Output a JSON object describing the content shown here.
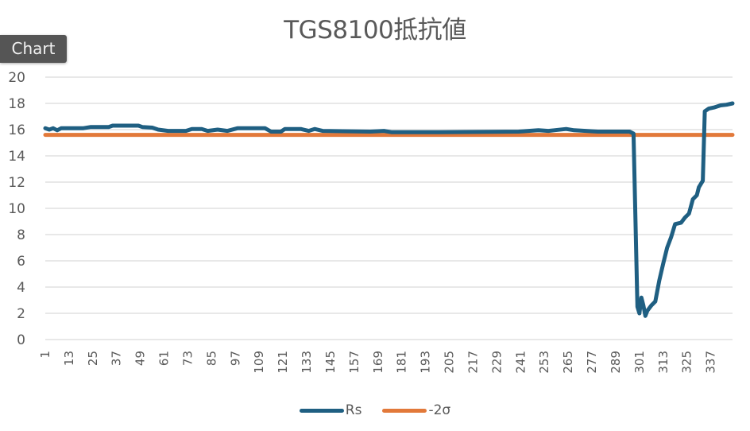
{
  "tag_label": "Chart",
  "colors": {
    "rs": "#1f5f82",
    "sigma": "#e2793a",
    "grid": "#d9d9d9",
    "text": "#595959"
  },
  "chart_data": {
    "type": "line",
    "title": "TGS8100抵抗値",
    "xlabel": "",
    "ylabel": "",
    "ylim": [
      0,
      20
    ],
    "yticks": [
      0,
      2,
      4,
      6,
      8,
      10,
      12,
      14,
      16,
      18,
      20
    ],
    "x_range": [
      1,
      348
    ],
    "xtick_labels": [
      "1",
      "13",
      "25",
      "37",
      "49",
      "61",
      "73",
      "85",
      "97",
      "109",
      "121",
      "133",
      "145",
      "157",
      "169",
      "181",
      "193",
      "205",
      "217",
      "229",
      "241",
      "253",
      "265",
      "277",
      "289",
      "301",
      "313",
      "325",
      "337"
    ],
    "grid": true,
    "legend_position": "bottom",
    "series": [
      {
        "name": "Rs",
        "color": "#1f5f82",
        "points": [
          [
            1,
            16.1
          ],
          [
            3,
            16.0
          ],
          [
            5,
            16.1
          ],
          [
            7,
            15.95
          ],
          [
            9,
            16.1
          ],
          [
            14,
            16.1
          ],
          [
            20,
            16.1
          ],
          [
            24,
            16.2
          ],
          [
            33,
            16.2
          ],
          [
            35,
            16.3
          ],
          [
            48,
            16.3
          ],
          [
            50,
            16.2
          ],
          [
            55,
            16.15
          ],
          [
            58,
            16.0
          ],
          [
            63,
            15.9
          ],
          [
            72,
            15.9
          ],
          [
            75,
            16.05
          ],
          [
            80,
            16.05
          ],
          [
            83,
            15.9
          ],
          [
            88,
            16.0
          ],
          [
            93,
            15.9
          ],
          [
            98,
            16.1
          ],
          [
            112,
            16.1
          ],
          [
            115,
            15.85
          ],
          [
            120,
            15.85
          ],
          [
            122,
            16.05
          ],
          [
            130,
            16.05
          ],
          [
            134,
            15.9
          ],
          [
            137,
            16.05
          ],
          [
            141,
            15.9
          ],
          [
            165,
            15.85
          ],
          [
            172,
            15.9
          ],
          [
            176,
            15.8
          ],
          [
            200,
            15.8
          ],
          [
            240,
            15.85
          ],
          [
            250,
            15.95
          ],
          [
            255,
            15.9
          ],
          [
            258,
            15.95
          ],
          [
            264,
            16.05
          ],
          [
            268,
            15.95
          ],
          [
            274,
            15.9
          ],
          [
            280,
            15.85
          ],
          [
            296,
            15.85
          ],
          [
            298,
            15.7
          ],
          [
            300,
            2.5
          ],
          [
            301,
            2.0
          ],
          [
            302,
            3.2
          ],
          [
            303,
            2.6
          ],
          [
            304,
            1.8
          ],
          [
            305,
            2.2
          ],
          [
            307,
            2.6
          ],
          [
            309,
            2.9
          ],
          [
            311,
            4.5
          ],
          [
            313,
            5.8
          ],
          [
            315,
            7.0
          ],
          [
            317,
            7.8
          ],
          [
            319,
            8.8
          ],
          [
            322,
            8.9
          ],
          [
            324,
            9.3
          ],
          [
            326,
            9.6
          ],
          [
            328,
            10.7
          ],
          [
            330,
            11.0
          ],
          [
            331,
            11.6
          ],
          [
            333,
            12.1
          ],
          [
            334,
            17.4
          ],
          [
            336,
            17.6
          ],
          [
            339,
            17.7
          ],
          [
            342,
            17.85
          ],
          [
            345,
            17.9
          ],
          [
            348,
            18.0
          ]
        ]
      },
      {
        "name": "-2σ",
        "color": "#e2793a",
        "points": [
          [
            1,
            15.6
          ],
          [
            348,
            15.6
          ]
        ]
      }
    ]
  },
  "legend": [
    {
      "label": "Rs",
      "color": "#1f5f82"
    },
    {
      "label": "-2σ",
      "color": "#e2793a"
    }
  ]
}
